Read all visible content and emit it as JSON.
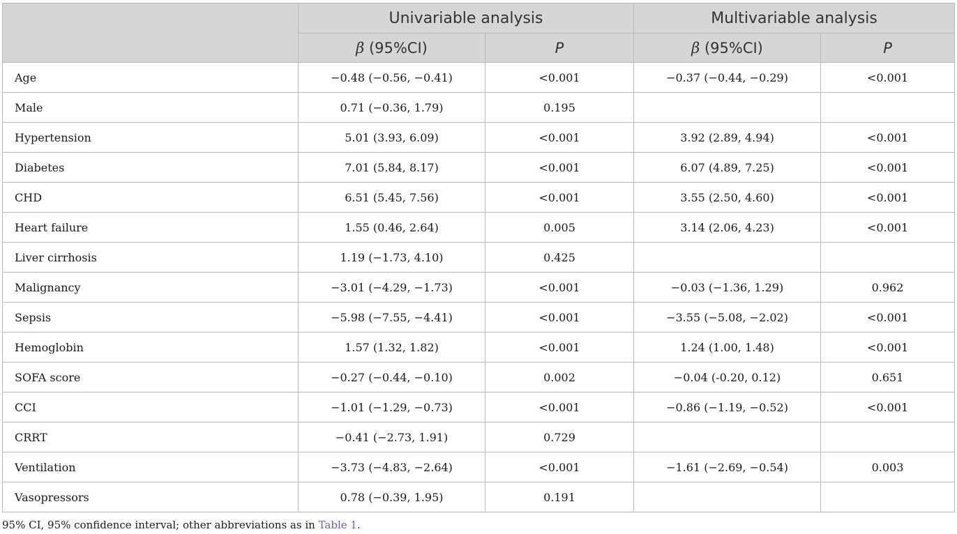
{
  "header": {
    "group1": "Univariable analysis",
    "group2": "Multivariable analysis",
    "beta_symbol": "β",
    "ci_label": " (95%CI)",
    "p_label": "P"
  },
  "rows": [
    {
      "var": "Age",
      "u_beta": "−0.48 (−0.56, −0.41)",
      "u_p": "<0.001",
      "m_beta": "−0.37 (−0.44, −0.29)",
      "m_p": "<0.001"
    },
    {
      "var": "Male",
      "u_beta": "0.71 (−0.36, 1.79)",
      "u_p": "0.195",
      "m_beta": "",
      "m_p": ""
    },
    {
      "var": "Hypertension",
      "u_beta": "5.01 (3.93, 6.09)",
      "u_p": "<0.001",
      "m_beta": "3.92 (2.89, 4.94)",
      "m_p": "<0.001"
    },
    {
      "var": "Diabetes",
      "u_beta": "7.01 (5.84, 8.17)",
      "u_p": "<0.001",
      "m_beta": "6.07 (4.89, 7.25)",
      "m_p": "<0.001"
    },
    {
      "var": "CHD",
      "u_beta": "6.51 (5.45, 7.56)",
      "u_p": "<0.001",
      "m_beta": "3.55 (2.50, 4.60)",
      "m_p": "<0.001"
    },
    {
      "var": "Heart failure",
      "u_beta": "1.55 (0.46, 2.64)",
      "u_p": "0.005",
      "m_beta": "3.14 (2.06, 4.23)",
      "m_p": "<0.001"
    },
    {
      "var": "Liver cirrhosis",
      "u_beta": "1.19 (−1.73, 4.10)",
      "u_p": "0.425",
      "m_beta": "",
      "m_p": ""
    },
    {
      "var": "Malignancy",
      "u_beta": "−3.01 (−4.29, −1.73)",
      "u_p": "<0.001",
      "m_beta": "−0.03 (−1.36, 1.29)",
      "m_p": "0.962"
    },
    {
      "var": "Sepsis",
      "u_beta": "−5.98 (−7.55, −4.41)",
      "u_p": "<0.001",
      "m_beta": "−3.55 (−5.08, −2.02)",
      "m_p": "<0.001"
    },
    {
      "var": "Hemoglobin",
      "u_beta": "1.57 (1.32, 1.82)",
      "u_p": "<0.001",
      "m_beta": "1.24 (1.00, 1.48)",
      "m_p": "<0.001"
    },
    {
      "var": "SOFA score",
      "u_beta": "−0.27 (−0.44, −0.10)",
      "u_p": "0.002",
      "m_beta": "−0.04 (-0.20, 0.12)",
      "m_p": "0.651"
    },
    {
      "var": "CCI",
      "u_beta": "−1.01 (−1.29, −0.73)",
      "u_p": "<0.001",
      "m_beta": "−0.86 (−1.19, −0.52)",
      "m_p": "<0.001"
    },
    {
      "var": "CRRT",
      "u_beta": "−0.41 (−2.73, 1.91)",
      "u_p": "0.729",
      "m_beta": "",
      "m_p": ""
    },
    {
      "var": "Ventilation",
      "u_beta": "−3.73 (−4.83, −2.64)",
      "u_p": "<0.001",
      "m_beta": "−1.61 (−2.69, −0.54)",
      "m_p": "0.003"
    },
    {
      "var": "Vasopressors",
      "u_beta": "0.78 (−0.39, 1.95)",
      "u_p": "0.191",
      "m_beta": "",
      "m_p": ""
    }
  ],
  "footnote": {
    "text": "95% CI, 95% confidence interval; other abbreviations as in ",
    "link": "Table 1",
    "end": "."
  },
  "colors": {
    "header_bg": "#d6d6d6",
    "border": "#b9b9b9",
    "link": "#6a5bd1"
  }
}
